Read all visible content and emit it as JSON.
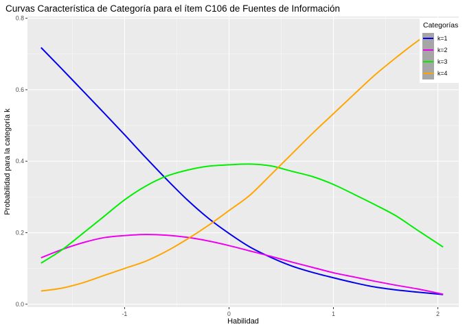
{
  "chart_data": {
    "type": "line",
    "title": "Curvas Característica de Categoría para el ítem C106 de Fuentes de Información",
    "xlabel": "Habilidad",
    "ylabel": "Probabilidad para la categoría k",
    "xlim": [
      -1.93,
      2.2
    ],
    "ylim": [
      -0.008,
      0.805
    ],
    "x_ticks": [
      -1,
      0,
      1,
      2
    ],
    "y_ticks": [
      0.0,
      0.2,
      0.4,
      0.6,
      0.8
    ],
    "x_tick_labels": [
      "-1",
      "0",
      "1",
      "2"
    ],
    "y_tick_labels": [
      "0.0",
      "0.2",
      "0.4",
      "0.6",
      "0.8"
    ],
    "grid": true,
    "legend": {
      "title": "Categorías",
      "position": "top-right"
    },
    "x": [
      -1.8,
      -1.6,
      -1.4,
      -1.2,
      -1.0,
      -0.8,
      -0.6,
      -0.4,
      -0.2,
      0.0,
      0.2,
      0.4,
      0.6,
      0.8,
      1.0,
      1.2,
      1.4,
      1.6,
      1.8,
      2.05
    ],
    "series": [
      {
        "name": "k=1",
        "color": "#0000ee",
        "values": [
          0.718,
          0.658,
          0.597,
          0.536,
          0.474,
          0.411,
          0.35,
          0.292,
          0.241,
          0.198,
          0.16,
          0.131,
          0.107,
          0.089,
          0.074,
          0.06,
          0.048,
          0.04,
          0.034,
          0.027
        ]
      },
      {
        "name": "k=2",
        "color": "#ee00ee",
        "values": [
          0.13,
          0.153,
          0.172,
          0.186,
          0.192,
          0.195,
          0.193,
          0.187,
          0.177,
          0.164,
          0.149,
          0.134,
          0.118,
          0.103,
          0.088,
          0.076,
          0.064,
          0.053,
          0.043,
          0.028
        ]
      },
      {
        "name": "k=3",
        "color": "#00ee00",
        "values": [
          0.115,
          0.152,
          0.198,
          0.245,
          0.292,
          0.33,
          0.358,
          0.375,
          0.386,
          0.39,
          0.392,
          0.387,
          0.372,
          0.357,
          0.335,
          0.307,
          0.278,
          0.247,
          0.208,
          0.16
        ]
      },
      {
        "name": "k=4",
        "color": "#ffa500",
        "values": [
          0.037,
          0.045,
          0.06,
          0.08,
          0.1,
          0.12,
          0.148,
          0.182,
          0.22,
          0.262,
          0.305,
          0.362,
          0.42,
          0.478,
          0.533,
          0.588,
          0.642,
          0.69,
          0.735,
          0.785
        ]
      }
    ]
  }
}
